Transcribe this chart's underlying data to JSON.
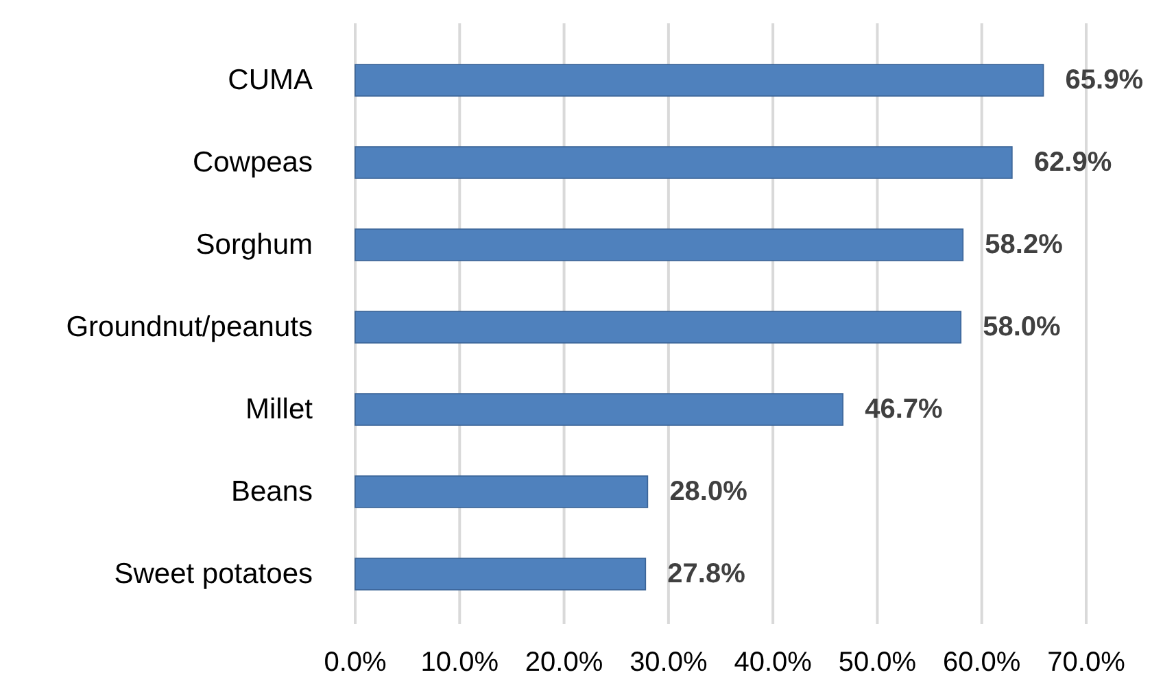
{
  "chart_data": {
    "type": "bar",
    "orientation": "horizontal",
    "categories": [
      "CUMA",
      "Cowpeas",
      "Sorghum",
      "Groundnut/peanuts",
      "Millet",
      "Beans",
      "Sweet potatoes"
    ],
    "values": [
      65.9,
      62.9,
      58.2,
      58.0,
      46.7,
      28.0,
      27.8
    ],
    "value_labels": [
      "65.9%",
      "62.9%",
      "58.2%",
      "58.0%",
      "46.7%",
      "28.0%",
      "27.8%"
    ],
    "color": "#4f81bd",
    "xlim": [
      0,
      70
    ],
    "xticks": [
      {
        "value": 0,
        "label": "0.0%"
      },
      {
        "value": 10,
        "label": "10.0%"
      },
      {
        "value": 20,
        "label": "20.0%"
      },
      {
        "value": 30,
        "label": "30.0%"
      },
      {
        "value": 40,
        "label": "40.0%"
      },
      {
        "value": 50,
        "label": "50.0%"
      },
      {
        "value": 60,
        "label": "60.0%"
      },
      {
        "value": 70,
        "label": "70.0%"
      }
    ],
    "grid": "x"
  }
}
